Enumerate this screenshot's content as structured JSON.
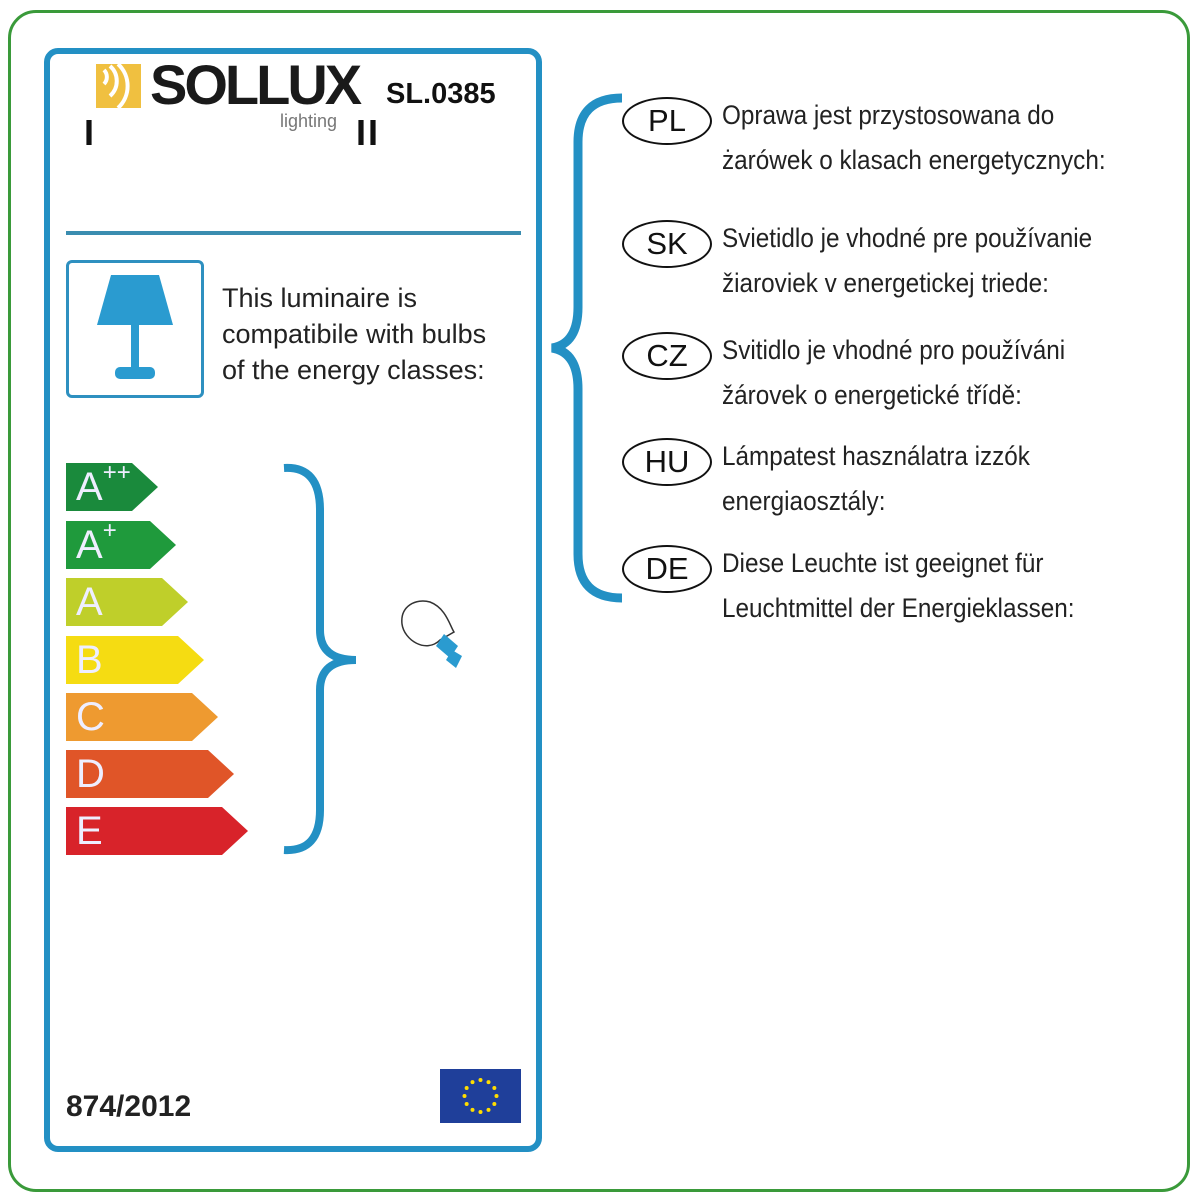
{
  "header": {
    "brand": "SOLLUX",
    "brand_sub": "lighting",
    "model": "SL.0385",
    "roman_left": "I",
    "roman_right": "II"
  },
  "compat_lines": [
    "This luminaire is",
    "compatibile with bulbs",
    "of the energy classes:"
  ],
  "energy_classes": [
    {
      "label": "A",
      "sup": "++",
      "color": "#1a8a3c"
    },
    {
      "label": "A",
      "sup": "+",
      "color": "#1f9a3c"
    },
    {
      "label": "A",
      "sup": "",
      "color": "#bfcf2a"
    },
    {
      "label": "B",
      "sup": "",
      "color": "#f5dc12"
    },
    {
      "label": "C",
      "sup": "",
      "color": "#ee9a30"
    },
    {
      "label": "D",
      "sup": "",
      "color": "#e05528"
    },
    {
      "label": "E",
      "sup": "",
      "color": "#d8232a"
    }
  ],
  "languages": [
    {
      "code": "PL",
      "lines": [
        "Oprawa jest przystosowana do",
        "żarówek o klasach energetycznych:"
      ]
    },
    {
      "code": "SK",
      "lines": [
        "Svietidlo je vhodné pre používanie",
        "žiaroviek v energetickej triede:"
      ]
    },
    {
      "code": "CZ",
      "lines": [
        "Svitidlo je vhodné pro používáni",
        "žárovek o energetické třídě:"
      ]
    },
    {
      "code": "HU",
      "lines": [
        "Lámpatest használatra izzók",
        "energiaosztály:"
      ]
    },
    {
      "code": "DE",
      "lines": [
        "Diese Leuchte ist geeignet für",
        "Leuchtmittel der Energieklassen:"
      ]
    }
  ],
  "regulation": "874/2012",
  "colors": {
    "accent_blue": "#2390c4",
    "border_green": "#3a9a3a",
    "logo_yellow": "#f0c040"
  },
  "icons": [
    "lamp-icon",
    "bulb-icon",
    "eu-flag-icon",
    "brace-icon"
  ]
}
